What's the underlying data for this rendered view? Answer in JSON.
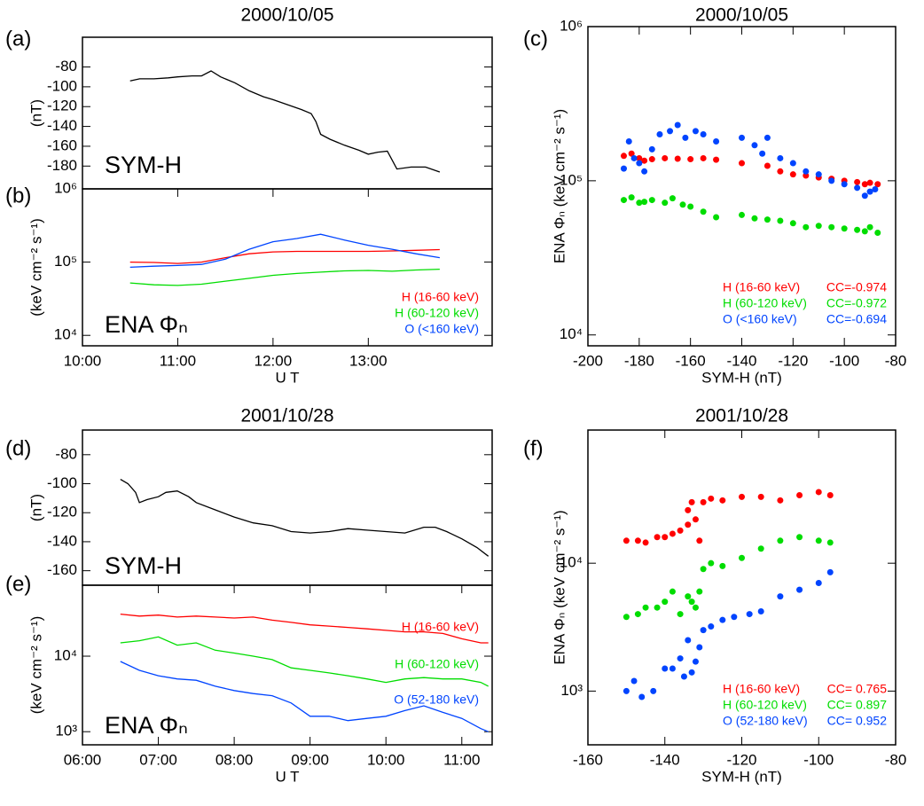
{
  "chart_data": [
    {
      "type": "line",
      "panel_label": "(a)",
      "title": "2000/10/05",
      "ylabel": "(nT)",
      "annotation": "SYM-H",
      "xlim": [
        10,
        14.3
      ],
      "ylim": [
        -203,
        -50
      ],
      "yticks": [
        -80,
        -100,
        -120,
        -140,
        -160,
        -180
      ],
      "x": [
        10.5,
        10.6,
        10.75,
        10.9,
        11,
        11.15,
        11.25,
        11.35,
        11.45,
        11.6,
        11.75,
        11.9,
        12,
        12.15,
        12.3,
        12.4,
        12.45,
        12.5,
        12.6,
        12.75,
        12.9,
        13,
        13.1,
        13.2,
        13.3,
        13.45,
        13.6,
        13.75
      ],
      "series": [
        {
          "color": "#000000",
          "values": [
            -94,
            -92,
            -92,
            -91,
            -90,
            -89,
            -89,
            -84,
            -90,
            -96,
            -104,
            -110,
            -113,
            -118,
            -123,
            -127,
            -135,
            -148,
            -153,
            -159,
            -164,
            -168,
            -166,
            -165,
            -183,
            -181,
            -181,
            -186
          ]
        }
      ]
    },
    {
      "type": "line",
      "panel_label": "(b)",
      "ylabel": "(keV cm⁻² s⁻¹)",
      "annotation": "ENA Φₙ",
      "xlabel": "U T",
      "log_y": true,
      "xlim": [
        10,
        14.3
      ],
      "ylim": [
        7200,
        1000000
      ],
      "xticks": [
        {
          "value": 10,
          "label": "10:00"
        },
        {
          "value": 11,
          "label": "11:00"
        },
        {
          "value": 12,
          "label": "12:00"
        },
        {
          "value": 13,
          "label": "13:00"
        }
      ],
      "yticks": [
        {
          "value": 10000,
          "label": "10⁴"
        },
        {
          "value": 100000,
          "label": "10⁵"
        },
        {
          "value": 1000000,
          "label": "10⁶"
        }
      ],
      "x": [
        10.5,
        10.75,
        11,
        11.25,
        11.5,
        11.75,
        12,
        12.25,
        12.5,
        12.75,
        13,
        13.25,
        13.5,
        13.75
      ],
      "series": [
        {
          "name": "H (16-60 keV)",
          "color": "#ff0000",
          "values": [
            100000,
            99000,
            96000,
            100000,
            115000,
            130000,
            138000,
            140000,
            140000,
            140000,
            140000,
            142000,
            145000,
            148000
          ]
        },
        {
          "name": "H (60-120 keV)",
          "color": "#00dd00",
          "values": [
            52000,
            49000,
            48000,
            50000,
            55000,
            60000,
            66000,
            70000,
            73000,
            76000,
            77000,
            75000,
            78000,
            80000
          ]
        },
        {
          "name": "O (<160 keV)",
          "color": "#0044ff",
          "values": [
            85000,
            88000,
            90000,
            93000,
            110000,
            150000,
            190000,
            210000,
            240000,
            200000,
            170000,
            150000,
            130000,
            115000
          ]
        }
      ]
    },
    {
      "type": "scatter",
      "panel_label": "(c)",
      "title": "2000/10/05",
      "ylabel": "ENA Φₙ (keV cm⁻² s⁻¹)",
      "xlabel": "SYM-H (nT)",
      "log_y": true,
      "xlim": [
        -200,
        -80
      ],
      "ylim": [
        8500,
        1000000
      ],
      "xticks": [
        -200,
        -180,
        -160,
        -140,
        -120,
        -100,
        -80
      ],
      "yticks": [
        {
          "value": 10000,
          "label": "10⁴"
        },
        {
          "value": 100000,
          "label": "10⁵"
        },
        {
          "value": 1000000,
          "label": "10⁶"
        }
      ],
      "series": [
        {
          "name": "H (16-60 keV)",
          "cc": "CC=-0.974",
          "color": "#ff0000",
          "x": [
            -186,
            -183,
            -180,
            -178,
            -175,
            -170,
            -165,
            -160,
            -155,
            -150,
            -140,
            -130,
            -125,
            -120,
            -115,
            -110,
            -105,
            -100,
            -95,
            -92,
            -90,
            -87
          ],
          "values": [
            145000,
            150000,
            140000,
            135000,
            138000,
            140000,
            139000,
            138000,
            140000,
            137000,
            130000,
            125000,
            115000,
            110000,
            108000,
            105000,
            103000,
            100000,
            98000,
            95000,
            97000,
            95000
          ]
        },
        {
          "name": "H (60-120 keV)",
          "cc": "CC=-0.972",
          "color": "#00dd00",
          "x": [
            -186,
            -183,
            -180,
            -178,
            -175,
            -170,
            -167,
            -163,
            -160,
            -155,
            -150,
            -140,
            -135,
            -130,
            -125,
            -120,
            -115,
            -110,
            -105,
            -100,
            -95,
            -92,
            -90,
            -87
          ],
          "values": [
            75000,
            78000,
            72000,
            73000,
            75000,
            72000,
            77000,
            70000,
            68000,
            63000,
            58000,
            60000,
            57000,
            56000,
            55000,
            53000,
            50000,
            51000,
            50000,
            49000,
            48000,
            47000,
            50000,
            46000
          ]
        },
        {
          "name": "O (<160 keV)",
          "cc": "CC=-0.694",
          "color": "#0044ff",
          "x": [
            -186,
            -184,
            -182,
            -180,
            -178,
            -175,
            -172,
            -168,
            -165,
            -162,
            -158,
            -155,
            -150,
            -140,
            -135,
            -132,
            -130,
            -125,
            -120,
            -115,
            -110,
            -105,
            -100,
            -95,
            -92,
            -90,
            -88
          ],
          "values": [
            120000,
            180000,
            140000,
            130000,
            115000,
            160000,
            200000,
            210000,
            230000,
            190000,
            210000,
            200000,
            180000,
            190000,
            170000,
            150000,
            190000,
            140000,
            130000,
            115000,
            110000,
            100000,
            95000,
            90000,
            80000,
            85000,
            88000
          ]
        }
      ]
    },
    {
      "type": "line",
      "panel_label": "(d)",
      "title": "2001/10/28",
      "ylabel": "(nT)",
      "annotation": "SYM-H",
      "xlim": [
        6,
        11.4
      ],
      "ylim": [
        -170,
        -63
      ],
      "yticks": [
        -80,
        -100,
        -120,
        -140,
        -160
      ],
      "x": [
        6.5,
        6.6,
        6.7,
        6.75,
        6.85,
        7,
        7.1,
        7.25,
        7.4,
        7.5,
        7.75,
        8,
        8.25,
        8.5,
        8.75,
        9,
        9.25,
        9.5,
        9.75,
        10,
        10.25,
        10.5,
        10.65,
        10.8,
        11,
        11.2,
        11.35
      ],
      "series": [
        {
          "color": "#000000",
          "values": [
            -97,
            -100,
            -106,
            -113,
            -111,
            -109,
            -106,
            -105,
            -109,
            -113,
            -118,
            -123,
            -127,
            -129,
            -133,
            -134,
            -133,
            -131,
            -132,
            -133,
            -134,
            -130,
            -130,
            -133,
            -138,
            -144,
            -150
          ]
        }
      ]
    },
    {
      "type": "line",
      "panel_label": "(e)",
      "ylabel": "(keV cm⁻² s⁻¹)",
      "annotation": "ENA Φₙ",
      "xlabel": "U T",
      "log_y": true,
      "xlim": [
        6,
        11.4
      ],
      "ylim": [
        670,
        87000
      ],
      "xticks": [
        {
          "value": 6,
          "label": "06:00"
        },
        {
          "value": 7,
          "label": "07:00"
        },
        {
          "value": 8,
          "label": "08:00"
        },
        {
          "value": 9,
          "label": "09:00"
        },
        {
          "value": 10,
          "label": "10:00"
        },
        {
          "value": 11,
          "label": "11:00"
        }
      ],
      "yticks": [
        {
          "value": 1000,
          "label": "10³"
        },
        {
          "value": 10000,
          "label": "10⁴"
        }
      ],
      "x": [
        6.5,
        6.75,
        7,
        7.25,
        7.5,
        7.75,
        8,
        8.25,
        8.5,
        8.75,
        9,
        9.25,
        9.5,
        9.75,
        10,
        10.25,
        10.5,
        10.75,
        11,
        11.25,
        11.35
      ],
      "series": [
        {
          "name": "H (16-60 keV)",
          "color": "#ff0000",
          "values": [
            36000,
            34000,
            35000,
            33000,
            34000,
            33000,
            32000,
            33000,
            30000,
            28000,
            26000,
            25000,
            24000,
            23000,
            22000,
            21000,
            21000,
            20000,
            17000,
            15000,
            15000
          ]
        },
        {
          "name": "H (60-120 keV)",
          "color": "#00dd00",
          "values": [
            15000,
            16000,
            18000,
            14000,
            15000,
            12000,
            11000,
            10000,
            9000,
            7000,
            6500,
            6000,
            5500,
            5000,
            4500,
            5000,
            5200,
            5000,
            5000,
            4500,
            4000
          ]
        },
        {
          "name": "O (52-180 keV)",
          "color": "#0044ff",
          "values": [
            8500,
            6500,
            5500,
            5000,
            4800,
            4000,
            3500,
            3200,
            3000,
            2400,
            1600,
            1600,
            1400,
            1500,
            1600,
            1900,
            2200,
            1800,
            1500,
            1100,
            1000
          ]
        }
      ]
    },
    {
      "type": "scatter",
      "panel_label": "(f)",
      "title": "2001/10/28",
      "ylabel": "ENA Φₙ (keV cm⁻² s⁻¹)",
      "xlabel": "SYM-H (nT)",
      "log_y": true,
      "xlim": [
        -160,
        -80
      ],
      "ylim": [
        380,
        110000
      ],
      "xticks": [
        -160,
        -140,
        -120,
        -100,
        -80
      ],
      "yticks": [
        {
          "value": 1000,
          "label": "10³"
        },
        {
          "value": 10000,
          "label": "10⁴"
        }
      ],
      "series": [
        {
          "name": "H (16-60 keV)",
          "cc": "CC= 0.765",
          "color": "#ff0000",
          "x": [
            -150,
            -147,
            -145,
            -142,
            -140,
            -138,
            -136,
            -134,
            -134,
            -133,
            -132,
            -131,
            -130,
            -128,
            -125,
            -120,
            -115,
            -110,
            -105,
            -100,
            -97
          ],
          "values": [
            15000,
            15000,
            14500,
            16000,
            16000,
            17000,
            18000,
            20000,
            26000,
            30000,
            22000,
            15000,
            30000,
            32000,
            31000,
            33000,
            33000,
            31000,
            34000,
            36000,
            34000
          ]
        },
        {
          "name": "H (60-120 keV)",
          "cc": "CC= 0.897",
          "color": "#00dd00",
          "x": [
            -150,
            -147,
            -145,
            -142,
            -140,
            -138,
            -136,
            -134,
            -133,
            -132,
            -131,
            -130,
            -128,
            -125,
            -120,
            -115,
            -110,
            -105,
            -100,
            -97
          ],
          "values": [
            3800,
            4000,
            4500,
            4500,
            5000,
            6000,
            4000,
            5500,
            5000,
            4500,
            6000,
            9000,
            10000,
            9500,
            11000,
            13000,
            15000,
            16000,
            15000,
            14500
          ]
        },
        {
          "name": "O (52-180 keV)",
          "cc": "CC= 0.952",
          "color": "#0044ff",
          "x": [
            -150,
            -148,
            -146,
            -143,
            -140,
            -138,
            -136,
            -135,
            -134,
            -133,
            -132,
            -131,
            -130,
            -128,
            -125,
            -122,
            -118,
            -115,
            -110,
            -105,
            -100,
            -97
          ],
          "values": [
            1000,
            1200,
            900,
            1000,
            1500,
            1500,
            1800,
            1300,
            2500,
            1400,
            1700,
            2200,
            3000,
            3200,
            3600,
            3800,
            4000,
            4200,
            5500,
            6200,
            7000,
            8500
          ]
        }
      ]
    }
  ]
}
